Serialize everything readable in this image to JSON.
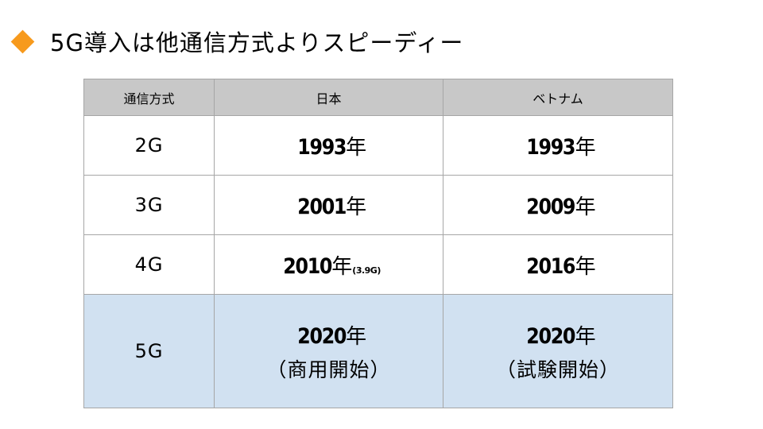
{
  "title": {
    "text": "5G導入は他通信方式よりスピーディー",
    "accent_color": "#f79a1d",
    "icon": "diamond-bullet-icon"
  },
  "table": {
    "headers": [
      "通信方式",
      "日本",
      "ベトナム"
    ],
    "header_bg": "#c8c8c8",
    "highlight_bg": "#d1e1f1",
    "rows": [
      {
        "generation": "2G",
        "japan": {
          "year": "1993",
          "unit": "年",
          "note": "",
          "sub": ""
        },
        "vietnam": {
          "year": "1993",
          "unit": "年",
          "note": "",
          "sub": ""
        }
      },
      {
        "generation": "3G",
        "japan": {
          "year": "2001",
          "unit": "年",
          "note": "",
          "sub": ""
        },
        "vietnam": {
          "year": "2009",
          "unit": "年",
          "note": "",
          "sub": ""
        }
      },
      {
        "generation": "4G",
        "japan": {
          "year": "2010",
          "unit": "年",
          "note": "(3.9G)",
          "sub": ""
        },
        "vietnam": {
          "year": "2016",
          "unit": "年",
          "note": "",
          "sub": ""
        }
      },
      {
        "generation": "5G",
        "japan": {
          "year": "2020",
          "unit": "年",
          "note": "",
          "sub": "（商用開始）"
        },
        "vietnam": {
          "year": "2020",
          "unit": "年",
          "note": "",
          "sub": "（試験開始）"
        }
      }
    ]
  }
}
